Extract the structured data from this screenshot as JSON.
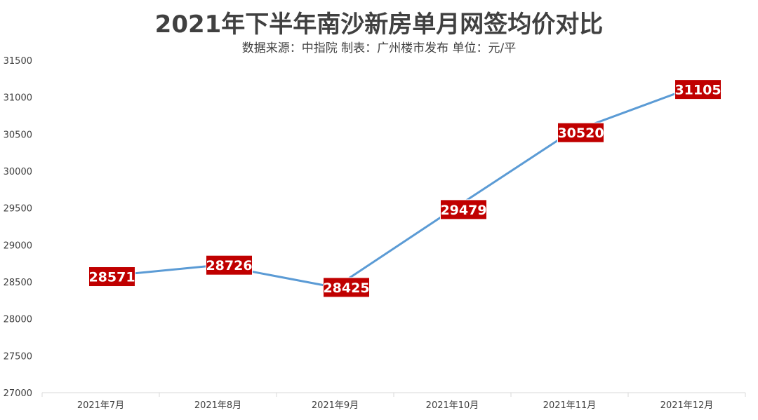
{
  "colors": {
    "line": "#5b9bd5",
    "label_bg": "#c00000",
    "text": "#404040",
    "axis": "#d9d9d9"
  },
  "chart_data": {
    "type": "line",
    "title": "2021年下半年南沙新房单月网签均价对比",
    "subtitle": "数据来源：中指院  制表：广州楼市发布 单位：元/平",
    "categories": [
      "2021年7月",
      "2021年8月",
      "2021年9月",
      "2021年10月",
      "2021年11月",
      "2021年12月"
    ],
    "series": [
      {
        "values": [
          28571,
          28726,
          28425,
          29479,
          30520,
          31105
        ]
      }
    ],
    "ylim": [
      27000,
      31500
    ],
    "yticks": [
      27000,
      27500,
      28000,
      28500,
      29000,
      29500,
      30000,
      30500,
      31000,
      31500
    ],
    "xlabel": "",
    "ylabel": "",
    "grid": false,
    "legend": "none",
    "data_labels": true
  }
}
